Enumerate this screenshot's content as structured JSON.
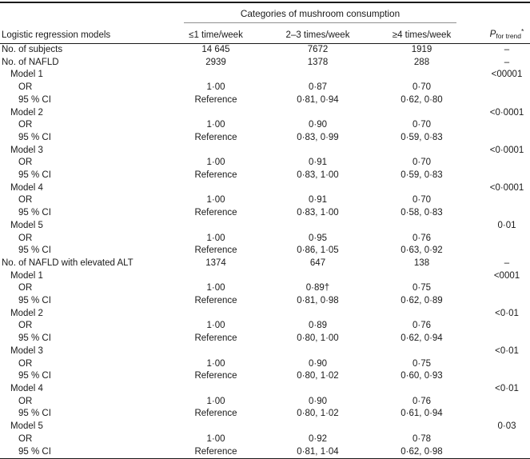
{
  "colors": {
    "background": "#ffffff",
    "text": "#1a1a1a",
    "rule": "#1a1a1a",
    "spanner_rule": "#909090"
  },
  "table": {
    "spanner_title": "Categories of mushroom consumption",
    "col_headers": [
      "Logistic regression models",
      "≤1 time/week",
      "2–3 times/week",
      "≥4 times/week"
    ],
    "p_header": {
      "symbol": "P",
      "subscript": "for trend",
      "superscript": "*"
    },
    "rows": [
      {
        "label": "No. of subjects",
        "indent": 0,
        "v1": "14 645",
        "v2": "7672",
        "v3": "1919",
        "p": "–"
      },
      {
        "label": "No. of NAFLD",
        "indent": 0,
        "v1": "2939",
        "v2": "1378",
        "v3": "288",
        "p": "–"
      },
      {
        "label": "Model 1",
        "indent": 1,
        "v1": "",
        "v2": "",
        "v3": "",
        "p": "<00001"
      },
      {
        "label": "OR",
        "indent": 2,
        "v1": "1·00",
        "v2": "0·87",
        "v3": "0·70",
        "p": ""
      },
      {
        "label": "95 % CI",
        "indent": 2,
        "v1": "Reference",
        "v2": "0·81, 0·94",
        "v3": "0·62, 0·80",
        "p": ""
      },
      {
        "label": "Model 2",
        "indent": 1,
        "v1": "",
        "v2": "",
        "v3": "",
        "p": "<0·0001"
      },
      {
        "label": "OR",
        "indent": 2,
        "v1": "1·00",
        "v2": "0·90",
        "v3": "0·70",
        "p": ""
      },
      {
        "label": "95 % CI",
        "indent": 2,
        "v1": "Reference",
        "v2": "0·83, 0·99",
        "v3": "0·59, 0·83",
        "p": ""
      },
      {
        "label": "Model 3",
        "indent": 1,
        "v1": "",
        "v2": "",
        "v3": "",
        "p": "<0·0001"
      },
      {
        "label": "OR",
        "indent": 2,
        "v1": "1·00",
        "v2": "0·91",
        "v3": "0·70",
        "p": ""
      },
      {
        "label": "95 % CI",
        "indent": 2,
        "v1": "Reference",
        "v2": "0·83, 1·00",
        "v3": "0·59, 0·83",
        "p": ""
      },
      {
        "label": "Model 4",
        "indent": 1,
        "v1": "",
        "v2": "",
        "v3": "",
        "p": "<0·0001"
      },
      {
        "label": "OR",
        "indent": 2,
        "v1": "1·00",
        "v2": "0·91",
        "v3": "0·70",
        "p": ""
      },
      {
        "label": "95 % CI",
        "indent": 2,
        "v1": "Reference",
        "v2": "0·83, 1·00",
        "v3": "0·58, 0·83",
        "p": ""
      },
      {
        "label": "Model 5",
        "indent": 1,
        "v1": "",
        "v2": "",
        "v3": "",
        "p": "0·01"
      },
      {
        "label": "OR",
        "indent": 2,
        "v1": "1·00",
        "v2": "0·95",
        "v3": "0·76",
        "p": ""
      },
      {
        "label": "95 % CI",
        "indent": 2,
        "v1": "Reference",
        "v2": "0·86, 1·05",
        "v3": "0·63, 0·92",
        "p": ""
      },
      {
        "label": "No. of NAFLD with elevated ALT",
        "indent": 0,
        "v1": "1374",
        "v2": "647",
        "v3": "138",
        "p": "–"
      },
      {
        "label": "Model 1",
        "indent": 1,
        "v1": "",
        "v2": "",
        "v3": "",
        "p": "<0001"
      },
      {
        "label": "OR",
        "indent": 2,
        "v1": "1·00",
        "v2": "0·89†",
        "v3": "0·75",
        "p": ""
      },
      {
        "label": "95 % CI",
        "indent": 2,
        "v1": "Reference",
        "v2": "0·81, 0·98",
        "v3": "0·62, 0·89",
        "p": ""
      },
      {
        "label": "Model 2",
        "indent": 1,
        "v1": "",
        "v2": "",
        "v3": "",
        "p": "<0·01"
      },
      {
        "label": "OR",
        "indent": 2,
        "v1": "1·00",
        "v2": "0·89",
        "v3": "0·76",
        "p": ""
      },
      {
        "label": "95 % CI",
        "indent": 2,
        "v1": "Reference",
        "v2": "0·80, 1·00",
        "v3": "0·62, 0·94",
        "p": ""
      },
      {
        "label": "Model 3",
        "indent": 1,
        "v1": "",
        "v2": "",
        "v3": "",
        "p": "<0·01"
      },
      {
        "label": "OR",
        "indent": 2,
        "v1": "1·00",
        "v2": "0·90",
        "v3": "0·75",
        "p": ""
      },
      {
        "label": "95 % CI",
        "indent": 2,
        "v1": "Reference",
        "v2": "0·80, 1·02",
        "v3": "0·60, 0·93",
        "p": ""
      },
      {
        "label": "Model 4",
        "indent": 1,
        "v1": "",
        "v2": "",
        "v3": "",
        "p": "<0·01"
      },
      {
        "label": "OR",
        "indent": 2,
        "v1": "1·00",
        "v2": "0·90",
        "v3": "0·76",
        "p": ""
      },
      {
        "label": "95 % CI",
        "indent": 2,
        "v1": "Reference",
        "v2": "0·80, 1·02",
        "v3": "0·61, 0·94",
        "p": ""
      },
      {
        "label": "Model 5",
        "indent": 1,
        "v1": "",
        "v2": "",
        "v3": "",
        "p": "0·03"
      },
      {
        "label": "OR",
        "indent": 2,
        "v1": "1·00",
        "v2": "0·92",
        "v3": "0·78",
        "p": ""
      },
      {
        "label": "95 % CI",
        "indent": 2,
        "v1": "Reference",
        "v2": "0·81, 1·04",
        "v3": "0·62, 0·98",
        "p": ""
      }
    ]
  }
}
